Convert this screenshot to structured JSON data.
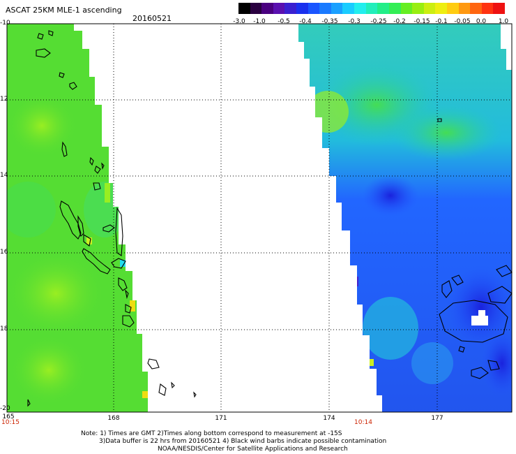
{
  "header": {
    "title": "ASCAT 25KM MLE-1 ascending",
    "date": "20160521"
  },
  "colorbar": {
    "labels": [
      "-3.0",
      "-1.0",
      "-0.5",
      "-0.4",
      "-0.35",
      "-0.3",
      "-0.25",
      "-0.2",
      "-0.15",
      "-0.1",
      "-0.05",
      "0.0",
      "1.0"
    ]
  },
  "axes": {
    "lat_labels": [
      "-10",
      "12",
      "14",
      "16",
      "18",
      "-20"
    ],
    "lon_labels": [
      "165",
      "168",
      "171",
      "174",
      "177"
    ],
    "time_left": "10:15",
    "time_right": "10:14"
  },
  "notes": {
    "line1": "Note: 1) Times are GMT 2)Times along bottom correspond to measurement at -15S",
    "line2": "3)Data buffer is 22 hrs from 20160521 4) Black wind barbs indicate possible contamination",
    "line3": "NOAA/NESDIS/Center for Satellite Applications and Research"
  },
  "colors": {
    "green": "#44dd44",
    "lime": "#99ee22",
    "yellow_green": "#ccee22",
    "cyan": "#22ddee",
    "blue": "#2255ff",
    "deep_blue": "#1a22dd"
  }
}
